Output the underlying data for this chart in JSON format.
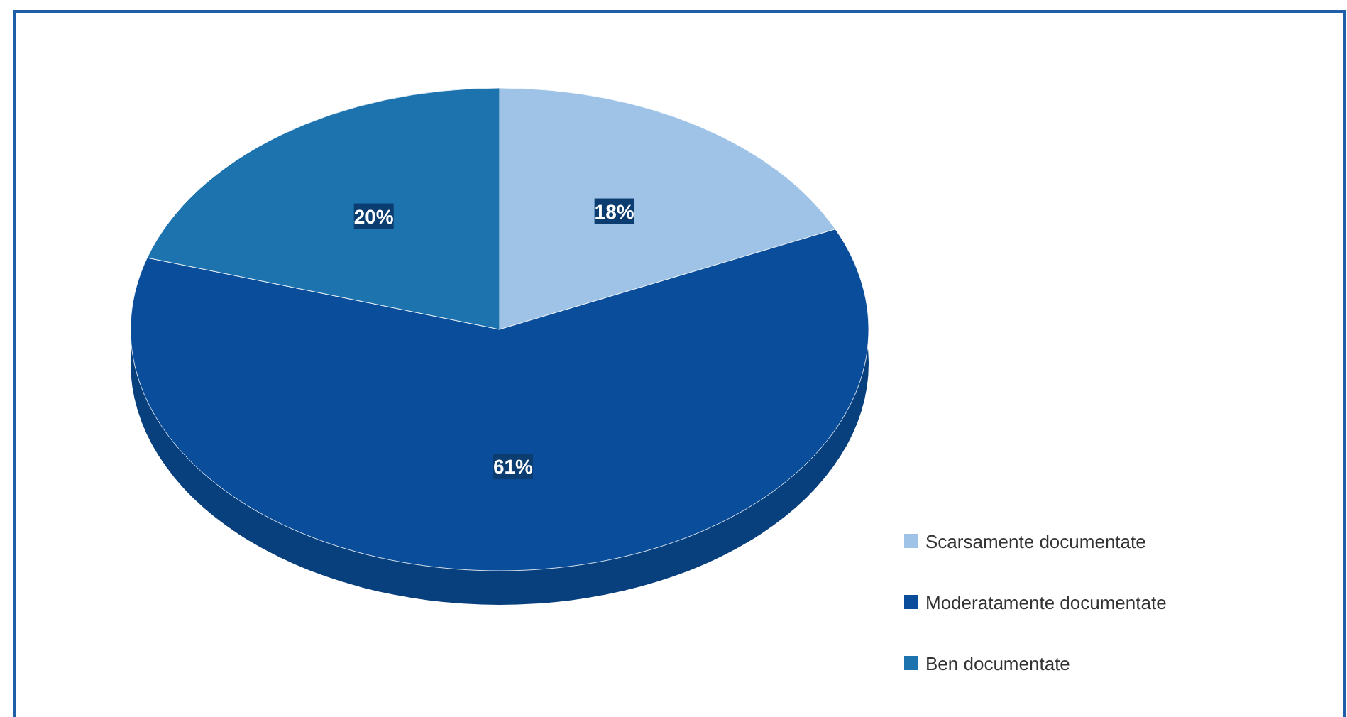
{
  "chart_data": {
    "type": "pie",
    "categories": [
      "Scarsamente documentate",
      "Moderatamente documentate",
      "Ben documentate"
    ],
    "values": [
      18,
      61,
      20
    ],
    "value_labels": [
      "18%",
      "61%",
      "20%"
    ],
    "colors": [
      "#9fc3e7",
      "#0a4e9b",
      "#1d73ae"
    ],
    "legend": "bottom right"
  }
}
